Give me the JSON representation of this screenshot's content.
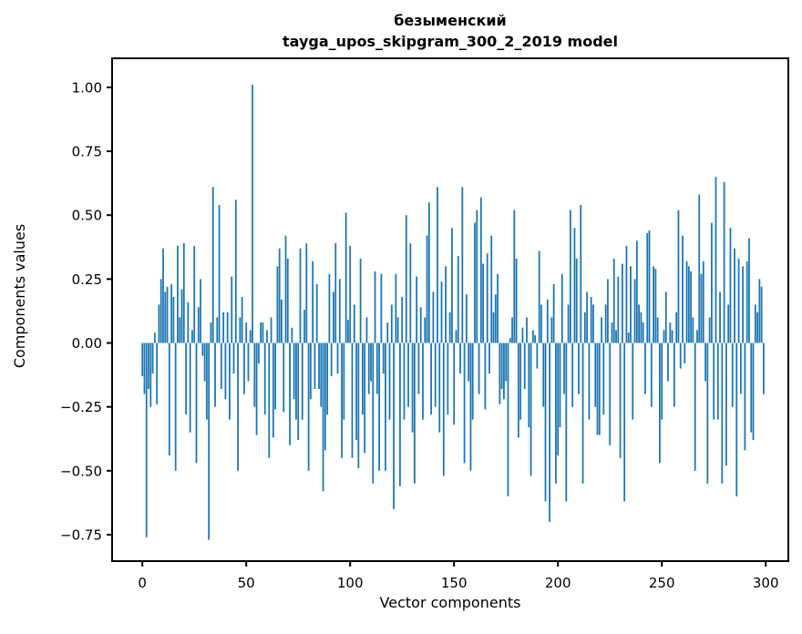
{
  "figure": {
    "background": "#ffffff"
  },
  "chart_data": {
    "type": "bar",
    "title": "безыменский",
    "subtitle": "tayga_upos_skipgram_300_2_2019 model",
    "xlabel": "Vector components",
    "ylabel": "Components values",
    "bar_color": "#1f77b4",
    "axis_color": "#000000",
    "grid": false,
    "legend": "none",
    "n_components": 300,
    "xlim": [
      -14.6,
      310.9
    ],
    "ylim": [
      -0.853,
      1.114
    ],
    "x_ticks": [
      {
        "label": "0",
        "value": 0
      },
      {
        "label": "50",
        "value": 50
      },
      {
        "label": "100",
        "value": 100
      },
      {
        "label": "150",
        "value": 150
      },
      {
        "label": "200",
        "value": 200
      },
      {
        "label": "250",
        "value": 250
      },
      {
        "label": "300",
        "value": 300
      }
    ],
    "y_ticks": [
      {
        "label": "1.00",
        "value": 1.0
      },
      {
        "label": "0.75",
        "value": 0.75
      },
      {
        "label": "0.50",
        "value": 0.5
      },
      {
        "label": "0.25",
        "value": 0.25
      },
      {
        "label": "0.00",
        "value": 0.0
      },
      {
        "label": "−0.25",
        "value": -0.25
      },
      {
        "label": "−0.50",
        "value": -0.5
      },
      {
        "label": "−0.75",
        "value": -0.75
      }
    ],
    "values": [
      -0.13,
      -0.2,
      -0.76,
      -0.18,
      -0.25,
      -0.12,
      0.04,
      -0.24,
      0.15,
      0.25,
      0.37,
      0.2,
      0.22,
      -0.44,
      0.23,
      0.18,
      -0.5,
      0.38,
      0.1,
      0.21,
      0.39,
      -0.28,
      0.16,
      -0.35,
      0.05,
      0.38,
      -0.47,
      0.14,
      0.25,
      -0.05,
      -0.15,
      -0.3,
      -0.77,
      0.08,
      0.61,
      -0.25,
      0.1,
      0.54,
      -0.18,
      0.12,
      -0.22,
      0.12,
      -0.3,
      0.26,
      -0.12,
      0.56,
      -0.5,
      0.1,
      0.18,
      -0.2,
      0.08,
      -0.15,
      0.05,
      1.01,
      -0.25,
      -0.36,
      -0.08,
      0.08,
      0.08,
      -0.28,
      0.05,
      -0.45,
      0.1,
      -0.37,
      -0.26,
      0.3,
      0.37,
      0.17,
      -0.27,
      0.42,
      0.33,
      -0.4,
      0.06,
      -0.22,
      -0.3,
      -0.38,
      0.37,
      -0.3,
      0.13,
      0.39,
      -0.5,
      -0.22,
      0.32,
      -0.18,
      0.23,
      -0.18,
      -0.25,
      -0.58,
      -0.42,
      -0.28,
      0.27,
      -0.13,
      0.2,
      0.39,
      -0.12,
      0.25,
      -0.45,
      -0.3,
      0.51,
      0.09,
      0.38,
      -0.45,
      0.15,
      -0.38,
      -0.49,
      0.33,
      -0.28,
      -0.43,
      0.1,
      -0.2,
      -0.15,
      -0.55,
      0.28,
      -0.2,
      -0.5,
      0.27,
      -0.12,
      -0.5,
      0.08,
      -0.3,
      0.15,
      -0.65,
      0.27,
      0.1,
      -0.56,
      0.18,
      -0.3,
      0.5,
      -0.25,
      0.39,
      -0.35,
      -0.55,
      0.26,
      -0.2,
      0.14,
      -0.3,
      0.1,
      0.42,
      0.55,
      -0.28,
      0.2,
      -0.25,
      0.61,
      -0.35,
      0.24,
      -0.52,
      0.3,
      -0.28,
      0.12,
      0.45,
      -0.32,
      0.05,
      0.34,
      -0.12,
      0.61,
      -0.47,
      0.19,
      -0.15,
      -0.5,
      -0.3,
      0.47,
      0.52,
      -0.2,
      0.57,
      0.31,
      -0.26,
      0.35,
      -0.12,
      0.42,
      0.12,
      0.19,
      0.27,
      -0.24,
      -0.18,
      -0.22,
      -0.15,
      -0.6,
      0.02,
      0.1,
      0.52,
      0.33,
      -0.37,
      -0.3,
      0.06,
      -0.18,
      0.1,
      -0.33,
      -0.52,
      0.05,
      0.03,
      -0.1,
      0.36,
      0.15,
      -0.25,
      -0.62,
      0.17,
      -0.7,
      0.1,
      0.23,
      -0.55,
      -0.44,
      -0.33,
      0.27,
      -0.2,
      -0.62,
      0.15,
      0.52,
      -0.25,
      0.45,
      0.33,
      -0.2,
      0.54,
      -0.55,
      0.12,
      0.2,
      -0.3,
      0.18,
      0.15,
      -0.25,
      -0.36,
      -0.36,
      0.1,
      -0.28,
      0.15,
      0.25,
      -0.4,
      0.08,
      0.33,
      0.05,
      0.26,
      -0.45,
      0.31,
      -0.62,
      0.38,
      0.04,
      0.3,
      -0.3,
      0.25,
      0.4,
      0.15,
      0.12,
      0.08,
      -0.2,
      0.43,
      0.44,
      -0.25,
      0.3,
      0.29,
      0.1,
      -0.47,
      -0.3,
      0.05,
      0.2,
      -0.15,
      0.08,
      0.05,
      -0.25,
      0.12,
      0.52,
      -0.1,
      0.42,
      -0.08,
      0.32,
      0.3,
      0.28,
      0.1,
      -0.5,
      0.05,
      0.58,
      0.27,
      0.32,
      -0.15,
      -0.55,
      0.1,
      0.47,
      -0.3,
      0.65,
      -0.3,
      0.2,
      -0.55,
      0.63,
      -0.48,
      0.15,
      0.45,
      -0.25,
      0.37,
      -0.6,
      0.33,
      -0.2,
      0.3,
      -0.42,
      0.32,
      0.41,
      -0.35,
      -0.38,
      0.15,
      0.12,
      0.25,
      0.22,
      -0.2
    ]
  }
}
